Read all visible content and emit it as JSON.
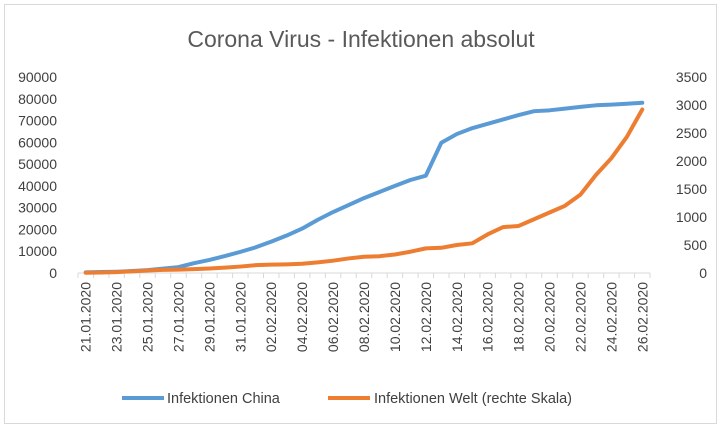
{
  "chart_data": {
    "type": "line",
    "title": "Corona Virus - Infektionen absolut",
    "ylim": [
      0,
      90000
    ],
    "yticks": [
      "0",
      "10000",
      "20000",
      "30000",
      "40000",
      "50000",
      "60000",
      "70000",
      "80000",
      "90000"
    ],
    "y2lim": [
      0,
      3500
    ],
    "y2ticks": [
      "0",
      "500",
      "1000",
      "1500",
      "2000",
      "2500",
      "3000",
      "3500"
    ],
    "x_labels": [
      "21.01.2020",
      "23.01.2020",
      "25.01.2020",
      "27.01.2020",
      "29.01.2020",
      "31.01.2020",
      "02.02.2020",
      "04.02.2020",
      "06.02.2020",
      "08.02.2020",
      "10.02.2020",
      "12.02.2020",
      "14.02.2020",
      "16.02.2020",
      "18.02.2020",
      "20.02.2020",
      "22.02.2020",
      "24.02.2020",
      "26.02.2020"
    ],
    "x": [
      "21.01.2020",
      "22.01.2020",
      "23.01.2020",
      "24.01.2020",
      "25.01.2020",
      "26.01.2020",
      "27.01.2020",
      "28.01.2020",
      "29.01.2020",
      "30.01.2020",
      "31.01.2020",
      "01.02.2020",
      "02.02.2020",
      "03.02.2020",
      "04.02.2020",
      "05.02.2020",
      "06.02.2020",
      "07.02.2020",
      "08.02.2020",
      "09.02.2020",
      "10.02.2020",
      "11.02.2020",
      "12.02.2020",
      "13.02.2020",
      "14.02.2020",
      "15.02.2020",
      "16.02.2020",
      "17.02.2020",
      "18.02.2020",
      "19.02.2020",
      "20.02.2020",
      "21.02.2020",
      "22.02.2020",
      "23.02.2020",
      "24.02.2020",
      "25.02.2020",
      "26.02.2020"
    ],
    "legend_position": "bottom",
    "grid": false,
    "series": [
      {
        "name": "Infektionen China",
        "axis": "left",
        "color": "#5b9bd5",
        "values": [
          300,
          450,
          600,
          900,
          1300,
          2000,
          2700,
          4500,
          6000,
          7800,
          9700,
          11800,
          14400,
          17200,
          20400,
          24400,
          28000,
          31200,
          34400,
          37200,
          40000,
          42700,
          44700,
          59800,
          63800,
          66500,
          68500,
          70500,
          72500,
          74300,
          74700,
          75500,
          76300,
          77000,
          77300,
          77700,
          78200
        ]
      },
      {
        "name": "Infektionen Welt (rechte Skala)",
        "axis": "right",
        "color": "#ed7d31",
        "values": [
          5,
          8,
          15,
          30,
          45,
          55,
          60,
          70,
          80,
          95,
          115,
          140,
          150,
          155,
          165,
          190,
          220,
          260,
          290,
          300,
          330,
          380,
          440,
          450,
          500,
          530,
          690,
          820,
          840,
          960,
          1080,
          1200,
          1400,
          1750,
          2050,
          2430,
          2920
        ]
      }
    ]
  }
}
